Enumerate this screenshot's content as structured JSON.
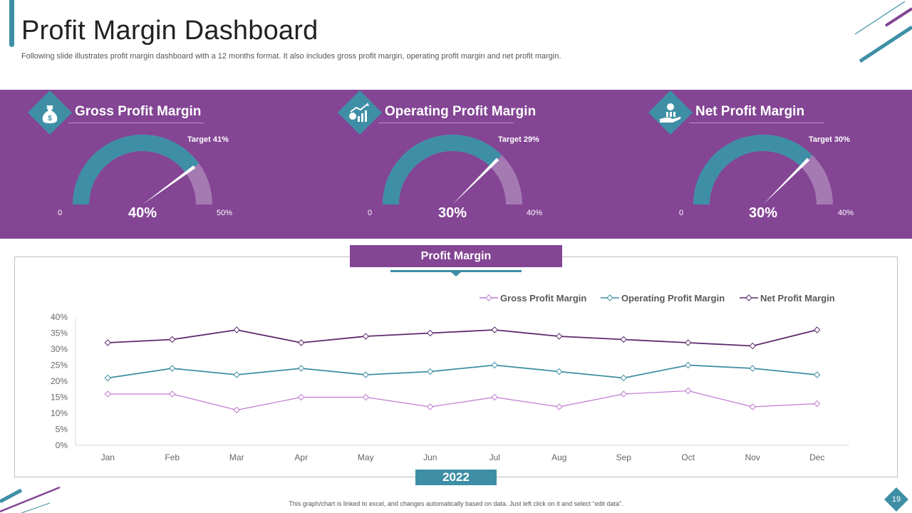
{
  "header": {
    "title": "Profit Margin Dashboard",
    "subtitle": "Following slide illustrates profit margin dashboard with a 12 months format. It also includes gross profit margin, operating profit margin and net profit margin."
  },
  "kpis": [
    {
      "title": "Gross Profit Margin",
      "icon": "money-bag-icon",
      "target_label": "Target 41%",
      "target": 41,
      "value_label": "40%",
      "value": 40,
      "min_label": "0",
      "min": 0,
      "max_label": "50%",
      "max": 50
    },
    {
      "title": "Operating Profit Margin",
      "icon": "growth-chart-icon",
      "target_label": "Target 29%",
      "target": 29,
      "value_label": "30%",
      "value": 30,
      "min_label": "0",
      "min": 0,
      "max_label": "40%",
      "max": 40
    },
    {
      "title": "Net Profit Margin",
      "icon": "hand-coin-icon",
      "target_label": "Target 30%",
      "target": 30,
      "value_label": "30%",
      "value": 30,
      "min_label": "0",
      "min": 0,
      "max_label": "40%",
      "max": 40
    }
  ],
  "chart_tab": "Profit Margin",
  "year": "2022",
  "footnote": "This graph/chart is linked to excel, and changes automatically based on data. Just left click on it and select “edit data”.",
  "page_number": "19",
  "colors": {
    "purple": "#834594",
    "teal": "#3e8fa5",
    "net": "#5e2a6e",
    "gross": "#c07ad0"
  },
  "chart_data": {
    "type": "line",
    "categories": [
      "Jan",
      "Feb",
      "Mar",
      "Apr",
      "May",
      "Jun",
      "Jul",
      "Aug",
      "Sep",
      "Oct",
      "Nov",
      "Dec"
    ],
    "series": [
      {
        "name": "Gross Profit Margin",
        "color": "#c07ad0",
        "values": [
          16,
          16,
          11,
          15,
          15,
          12,
          15,
          12,
          16,
          17,
          12,
          13
        ]
      },
      {
        "name": "Operating Profit Margin",
        "color": "#3e8fa5",
        "values": [
          21,
          24,
          22,
          24,
          22,
          23,
          25,
          23,
          21,
          25,
          24,
          22
        ]
      },
      {
        "name": "Net Profit Margin",
        "color": "#5e2a6e",
        "values": [
          32,
          33,
          36,
          32,
          34,
          35,
          36,
          34,
          33,
          32,
          31,
          36
        ]
      }
    ],
    "y_ticks": [
      "0%",
      "5%",
      "10%",
      "15%",
      "20%",
      "25%",
      "30%",
      "35%",
      "40%"
    ],
    "ylim": [
      0,
      40
    ],
    "title": "Profit Margin",
    "xlabel": "2022",
    "ylabel": "",
    "legend_position": "top-right"
  }
}
